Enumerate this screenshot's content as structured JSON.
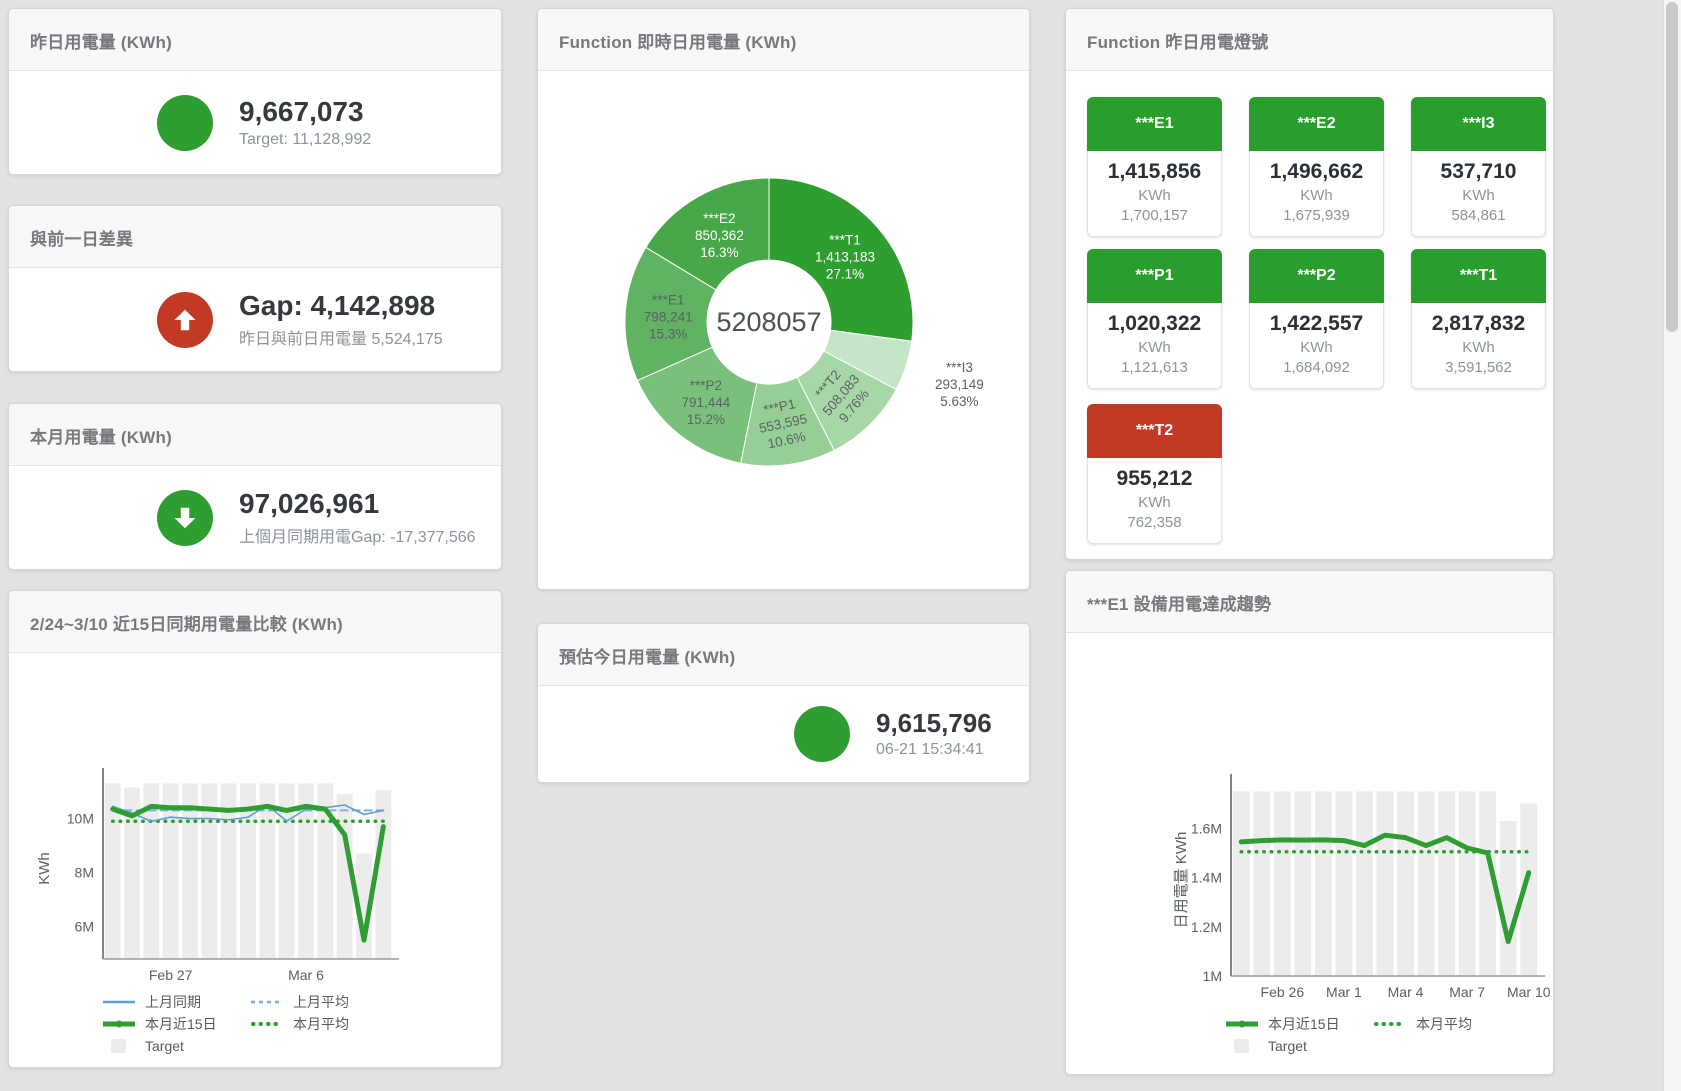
{
  "cards": {
    "yesterday": {
      "title": "昨日用電量 (KWh)",
      "value": "9,667,073",
      "subtitle": "Target: 11,128,992",
      "status_color": "#2f9e32"
    },
    "diff_prev_day": {
      "title": "與前一日差異",
      "value": "Gap: 4,142,898",
      "subtitle": "昨日與前日用電量 5,524,175",
      "status_color": "#c13a26"
    },
    "this_month": {
      "title": "本月用電量 (KWh)",
      "value": "97,026,961",
      "subtitle": "上個月同期用電Gap: -17,377,566",
      "status_color": "#2f9e32"
    },
    "estimate_today": {
      "title": "預估今日用電量 (KWh)",
      "value": "9,615,796",
      "subtitle": "06-21 15:34:41",
      "status_color": "#2f9e32"
    },
    "realtime_daily": {
      "title": "Function 即時日用電量 (KWh)",
      "chart_data": {
        "type": "pie",
        "donut": true,
        "center_total": "5208057",
        "slices": [
          {
            "name": "***T1",
            "value": 1413183,
            "pct": "27.1%",
            "color": "#2f9e31",
            "label_color": "#ffffff",
            "label_pos": "inside",
            "rotate": 0
          },
          {
            "name": "***I3",
            "value": 293149,
            "pct": "5.63%",
            "color": "#c5e6c6",
            "label_color": "#5d6165",
            "label_pos": "outside",
            "rotate": 0
          },
          {
            "name": "***T2",
            "value": 508083,
            "pct": "9.76%",
            "color": "#a6d7a7",
            "label_color": "#5d6165",
            "label_pos": "inside",
            "rotate": -50
          },
          {
            "name": "***P1",
            "value": 553595,
            "pct": "10.6%",
            "color": "#95cf96",
            "label_color": "#5d6165",
            "label_pos": "inside",
            "rotate": -12
          },
          {
            "name": "***P2",
            "value": 791444,
            "pct": "15.2%",
            "color": "#79c17b",
            "label_color": "#5d6165",
            "label_pos": "inside",
            "rotate": 0
          },
          {
            "name": "***E1",
            "value": 798241,
            "pct": "15.3%",
            "color": "#60b362",
            "label_color": "#5d6165",
            "label_pos": "inside",
            "rotate": 0
          },
          {
            "name": "***E2",
            "value": 850362,
            "pct": "16.3%",
            "color": "#47a849",
            "label_color": "#ffffff",
            "label_pos": "inside",
            "rotate": 0
          }
        ]
      }
    },
    "lights": {
      "title": "Function 昨日用電燈號",
      "tiles": [
        {
          "name": "***E1",
          "value": "1,415,856",
          "unit": "KWh",
          "target": "1,700,157",
          "header_color": "#2a9e2d"
        },
        {
          "name": "***E2",
          "value": "1,496,662",
          "unit": "KWh",
          "target": "1,675,939",
          "header_color": "#2a9e2d"
        },
        {
          "name": "***I3",
          "value": "537,710",
          "unit": "KWh",
          "target": "584,861",
          "header_color": "#2a9e2d"
        },
        {
          "name": "***P1",
          "value": "1,020,322",
          "unit": "KWh",
          "target": "1,121,613",
          "header_color": "#2a9e2d"
        },
        {
          "name": "***P2",
          "value": "1,422,557",
          "unit": "KWh",
          "target": "1,684,092",
          "header_color": "#2a9e2d"
        },
        {
          "name": "***T1",
          "value": "2,817,832",
          "unit": "KWh",
          "target": "3,591,562",
          "header_color": "#2a9e2d"
        },
        {
          "name": "***T2",
          "value": "955,212",
          "unit": "KWh",
          "target": "762,358",
          "header_color": "#c13a26"
        }
      ]
    },
    "compare_15d": {
      "title": "2/24~3/10 近15日同期用電量比較 (KWh)",
      "chart_data": {
        "type": "line",
        "ylabel": "KWh",
        "ylim": [
          4800000,
          11500000
        ],
        "yticks": [
          {
            "value": 6000000,
            "label": "6M"
          },
          {
            "value": 8000000,
            "label": "8M"
          },
          {
            "value": 10000000,
            "label": "10M"
          }
        ],
        "xticks": [
          {
            "index": 3,
            "label": "Feb 27"
          },
          {
            "index": 10,
            "label": "Mar 6"
          }
        ],
        "series": [
          {
            "name": "Target",
            "type": "bar",
            "color": "#ececec",
            "values": [
              11300000,
              11150000,
              11300000,
              11300000,
              11300000,
              11300000,
              11300000,
              11300000,
              11300000,
              11300000,
              11300000,
              11300000,
              10900000,
              8700000,
              11050000
            ]
          },
          {
            "name": "上月平均",
            "type": "line",
            "style": "dashed",
            "color": "#79b1de",
            "width": 2,
            "values": [
              10300000,
              10300000,
              10300000,
              10300000,
              10300000,
              10300000,
              10300000,
              10300000,
              10300000,
              10300000,
              10300000,
              10300000,
              10300000,
              10300000,
              10300000
            ]
          },
          {
            "name": "本月平均",
            "type": "line",
            "style": "dotted",
            "color": "#2f9e32",
            "width": 3.5,
            "values": [
              9900000,
              9900000,
              9900000,
              9900000,
              9900000,
              9900000,
              9900000,
              9900000,
              9900000,
              9900000,
              9900000,
              9900000,
              9900000,
              9900000,
              9900000
            ]
          },
          {
            "name": "上月同期",
            "type": "line",
            "style": "solid",
            "color": "#5f9fd6",
            "width": 1.6,
            "values": [
              10450000,
              10200000,
              9900000,
              10050000,
              10000000,
              10000000,
              9950000,
              10050000,
              10500000,
              9900000,
              10350000,
              10400000,
              10500000,
              10150000,
              10300000
            ]
          },
          {
            "name": "本月近15日",
            "type": "line",
            "style": "solid",
            "color": "#2f9e32",
            "width": 5,
            "values": [
              10350000,
              10100000,
              10450000,
              10400000,
              10400000,
              10350000,
              10300000,
              10350000,
              10450000,
              10300000,
              10450000,
              10350000,
              9400000,
              5500000,
              9700000
            ]
          }
        ],
        "legend": [
          {
            "label": "上月同期",
            "swatch": "line",
            "color": "#5f9fd6"
          },
          {
            "label": "上月平均",
            "swatch": "dashed",
            "color": "#79b1de"
          },
          {
            "label": "本月近15日",
            "swatch": "thick-line",
            "color": "#2f9e32"
          },
          {
            "label": "本月平均",
            "swatch": "dotted",
            "color": "#2f9e32"
          },
          {
            "label": "Target",
            "swatch": "square",
            "color": "#ececec"
          }
        ]
      }
    },
    "e1_trend": {
      "title": "***E1 設備用電達成趨勢",
      "chart_data": {
        "type": "line",
        "ylabel": "日用電量 KWh",
        "ylim": [
          1000000,
          1780000
        ],
        "yticks": [
          {
            "value": 1000000,
            "label": "1M"
          },
          {
            "value": 1200000,
            "label": "1.2M"
          },
          {
            "value": 1400000,
            "label": "1.4M"
          },
          {
            "value": 1600000,
            "label": "1.6M"
          }
        ],
        "xticks": [
          {
            "index": 2,
            "label": "Feb 26"
          },
          {
            "index": 5,
            "label": "Mar 1"
          },
          {
            "index": 8,
            "label": "Mar 4"
          },
          {
            "index": 11,
            "label": "Mar 7"
          },
          {
            "index": 14,
            "label": "Mar 10"
          }
        ],
        "series": [
          {
            "name": "Target",
            "type": "bar",
            "color": "#ececec",
            "values": [
              1750000,
              1750000,
              1750000,
              1750000,
              1750000,
              1750000,
              1750000,
              1750000,
              1750000,
              1750000,
              1750000,
              1750000,
              1750000,
              1630000,
              1700000
            ]
          },
          {
            "name": "本月平均",
            "type": "line",
            "style": "dotted",
            "color": "#2f9e32",
            "width": 3.5,
            "values": [
              1505000,
              1505000,
              1505000,
              1505000,
              1505000,
              1505000,
              1505000,
              1505000,
              1505000,
              1505000,
              1505000,
              1505000,
              1505000,
              1505000,
              1505000
            ]
          },
          {
            "name": "本月近15日",
            "type": "line",
            "style": "solid",
            "color": "#2f9e32",
            "width": 5,
            "values": [
              1545000,
              1550000,
              1553000,
              1552000,
              1553000,
              1550000,
              1530000,
              1572000,
              1562000,
              1530000,
              1562000,
              1520000,
              1500000,
              1140000,
              1420000
            ]
          }
        ],
        "legend": [
          {
            "label": "本月近15日",
            "swatch": "thick-line",
            "color": "#2f9e32"
          },
          {
            "label": "本月平均",
            "swatch": "dotted",
            "color": "#2f9e32"
          },
          {
            "label": "Target",
            "swatch": "square",
            "color": "#ececec"
          }
        ]
      }
    }
  }
}
